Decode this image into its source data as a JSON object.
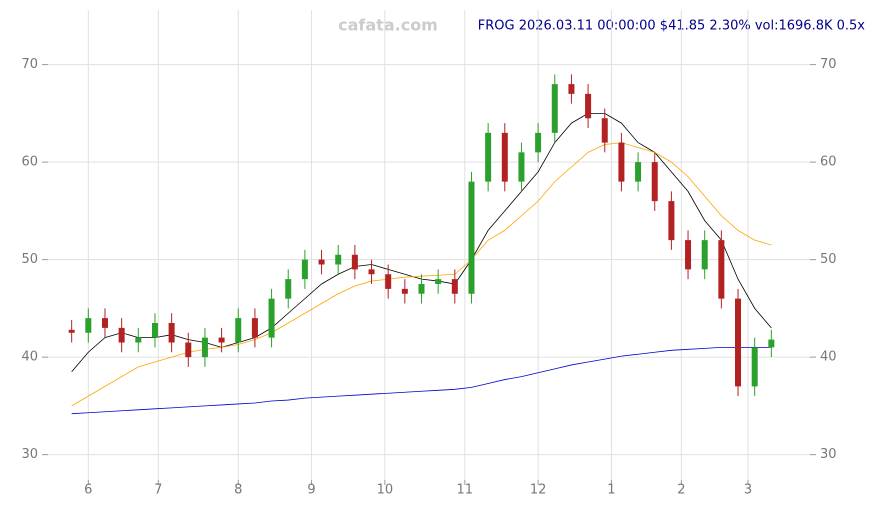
{
  "chart_data": {
    "type": "candlestick",
    "title": "FROG 2026.03.11 00:00:00 $41.85 2.30% vol:1696.8K 0.5x",
    "watermark": "cafata.com",
    "x": [
      0,
      5,
      10,
      15,
      20,
      25,
      30,
      35,
      40,
      45,
      50,
      55,
      60,
      65,
      70,
      75,
      80,
      85,
      90,
      95,
      100,
      105,
      110,
      115,
      120,
      125,
      130,
      135,
      140,
      145,
      150,
      155,
      160,
      165,
      170,
      175,
      180,
      185,
      190,
      195,
      200,
      205,
      210
    ],
    "open": [
      42.8,
      42.5,
      44,
      43,
      41.5,
      42,
      43.5,
      41.5,
      40,
      42,
      41.5,
      44,
      42,
      46,
      48,
      50,
      49.5,
      50.5,
      49,
      48.5,
      47,
      46.5,
      47.5,
      48,
      46.5,
      58,
      63,
      58,
      61,
      63,
      68,
      67,
      64.5,
      62,
      58,
      60,
      56,
      52,
      49,
      52,
      46,
      37,
      41
    ],
    "high": [
      43.8,
      45,
      45,
      44,
      43,
      44.5,
      44.5,
      42.5,
      43,
      43,
      45,
      45,
      47,
      49,
      51,
      51,
      51.5,
      51.5,
      50,
      49.5,
      48,
      48.5,
      49,
      49,
      59,
      64,
      64,
      62,
      64,
      69,
      69,
      68,
      65.5,
      63,
      61,
      61,
      57,
      53,
      53,
      53,
      47,
      42,
      42.8
    ],
    "low": [
      41.5,
      41.5,
      42,
      40.5,
      40.5,
      41,
      40.5,
      39,
      39,
      40.5,
      40.5,
      41,
      41,
      45,
      47,
      48.5,
      48.5,
      48,
      47.5,
      46,
      45.5,
      45.5,
      46.5,
      45.5,
      45.5,
      57,
      57,
      57,
      60,
      62,
      66,
      63.5,
      61,
      57,
      57,
      55,
      51,
      48,
      48,
      45,
      36,
      36,
      40
    ],
    "close": [
      42.5,
      44,
      43,
      41.5,
      42,
      43.5,
      41.5,
      40,
      42,
      41.5,
      44,
      42,
      46,
      48,
      50,
      49.5,
      50.5,
      49,
      48.5,
      47,
      46.5,
      47.5,
      48,
      46.5,
      58,
      63,
      58,
      61,
      63,
      68,
      67,
      64.5,
      62,
      58,
      60,
      56,
      52,
      49,
      52,
      46,
      37,
      41,
      41.8
    ],
    "up_color": "#2ca02c",
    "down_color": "#b22222",
    "series": [
      {
        "color": "#000000",
        "values": [
          38.5,
          40.5,
          42,
          42.5,
          42,
          42,
          42.3,
          41.8,
          41.5,
          41,
          41.5,
          42,
          43,
          44.5,
          46,
          47.5,
          48.5,
          49.3,
          49.5,
          49,
          48.5,
          48,
          47.8,
          47.5,
          50,
          53,
          55,
          57,
          59,
          62,
          64,
          65,
          65,
          64,
          62,
          61,
          59,
          57,
          54,
          52,
          48,
          45,
          43
        ]
      },
      {
        "color": "#ffa500",
        "values": [
          35,
          36,
          37,
          38,
          39,
          39.5,
          40,
          40.5,
          40.8,
          41,
          41.3,
          41.8,
          42.5,
          43.5,
          44.5,
          45.5,
          46.5,
          47.3,
          47.8,
          48,
          48.2,
          48.3,
          48.4,
          48.5,
          50,
          52,
          53,
          54.5,
          56,
          58,
          59.5,
          61,
          61.8,
          62,
          61.5,
          61,
          60,
          58.5,
          56.5,
          54.5,
          53,
          52,
          51.5
        ]
      },
      {
        "color": "#0000cd",
        "values": [
          34.2,
          34.3,
          34.4,
          34.5,
          34.6,
          34.7,
          34.8,
          34.9,
          35,
          35.1,
          35.2,
          35.3,
          35.5,
          35.6,
          35.8,
          35.9,
          36,
          36.1,
          36.2,
          36.3,
          36.4,
          36.5,
          36.6,
          36.7,
          36.9,
          37.3,
          37.7,
          38,
          38.4,
          38.8,
          39.2,
          39.5,
          39.8,
          40.1,
          40.3,
          40.5,
          40.7,
          40.8,
          40.9,
          41,
          41,
          41,
          41
        ]
      }
    ],
    "xlim": [
      -5,
      215
    ],
    "xticks": [
      {
        "value": 5,
        "label": "6"
      },
      {
        "value": 26,
        "label": "7"
      },
      {
        "value": 50,
        "label": "8"
      },
      {
        "value": 72,
        "label": "9"
      },
      {
        "value": 94,
        "label": "10"
      },
      {
        "value": 118,
        "label": "11"
      },
      {
        "value": 140,
        "label": "12"
      },
      {
        "value": 162,
        "label": "1"
      },
      {
        "value": 183,
        "label": "2"
      },
      {
        "value": 203,
        "label": "3"
      }
    ],
    "ylim": [
      27.4,
      75.6
    ],
    "yticks": [
      30,
      40,
      50,
      60,
      70
    ],
    "grid": true
  }
}
